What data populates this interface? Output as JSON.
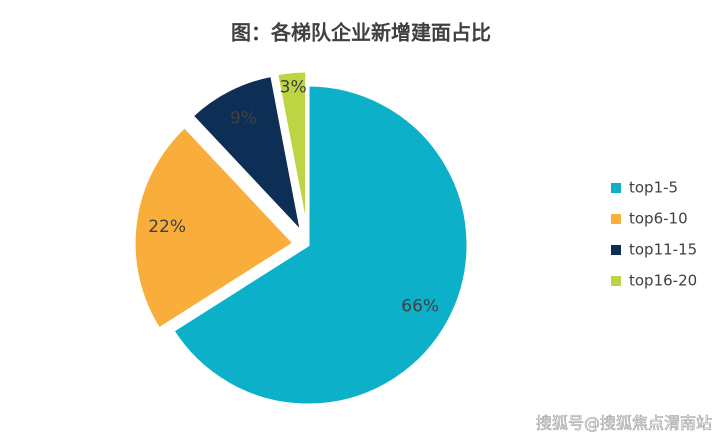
{
  "chart_data": {
    "type": "pie",
    "title": "图：各梯队企业新增建面占比",
    "categories": [
      "top1-5",
      "top6-10",
      "top11-15",
      "top16-20"
    ],
    "values": [
      66,
      22,
      9,
      3
    ],
    "value_labels": [
      "66%",
      "22%",
      "9%",
      "3%"
    ],
    "colors": [
      "#0cb0c9",
      "#f9ae3c",
      "#0e2f55",
      "#bdd543"
    ],
    "legend": "right",
    "watermark": "搜狐号@搜狐焦点渭南站"
  }
}
